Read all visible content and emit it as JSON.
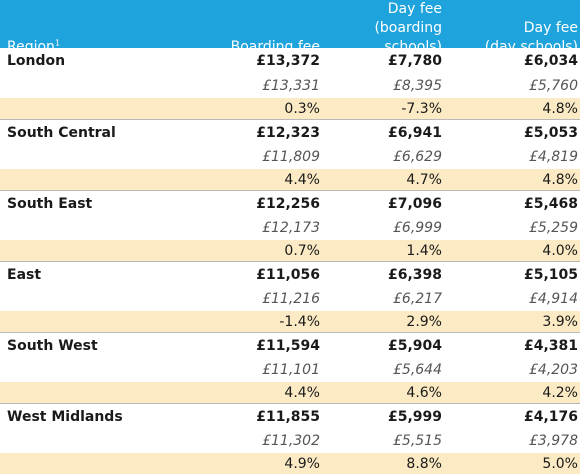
{
  "header": {
    "region_label": "Region",
    "region_footnote": "1",
    "boarding_label": "Boarding fee",
    "day_boarding_label_1": "Day fee",
    "day_boarding_label_2": "(boarding schools)",
    "day_day_label_1": "Day fee",
    "day_day_label_2": "(day schools)"
  },
  "rows": [
    {
      "region": "London",
      "boarding": "£13,372",
      "day_boarding": "£7,780",
      "day_day": "£6,034",
      "prev_boarding": "£13,331",
      "prev_day_boarding": "£8,395",
      "prev_day_day": "£5,760",
      "pct_boarding": "0.3%",
      "pct_day_boarding": "-7.3%",
      "pct_day_day": "4.8%"
    },
    {
      "region": "South Central",
      "boarding": "£12,323",
      "day_boarding": "£6,941",
      "day_day": "£5,053",
      "prev_boarding": "£11,809",
      "prev_day_boarding": "£6,629",
      "prev_day_day": "£4,819",
      "pct_boarding": "4.4%",
      "pct_day_boarding": "4.7%",
      "pct_day_day": "4.8%"
    },
    {
      "region": "South East",
      "boarding": "£12,256",
      "day_boarding": "£7,096",
      "day_day": "£5,468",
      "prev_boarding": "£12,173",
      "prev_day_boarding": "£6,999",
      "prev_day_day": "£5,259",
      "pct_boarding": "0.7%",
      "pct_day_boarding": "1.4%",
      "pct_day_day": "4.0%"
    },
    {
      "region": "East",
      "boarding": "£11,056",
      "day_boarding": "£6,398",
      "day_day": "£5,105",
      "prev_boarding": "£11,216",
      "prev_day_boarding": "£6,217",
      "prev_day_day": "£4,914",
      "pct_boarding": "-1.4%",
      "pct_day_boarding": "2.9%",
      "pct_day_day": "3.9%"
    },
    {
      "region": "South West",
      "boarding": "£11,594",
      "day_boarding": "£5,904",
      "day_day": "£4,381",
      "prev_boarding": "£11,101",
      "prev_day_boarding": "£5,644",
      "prev_day_day": "£4,203",
      "pct_boarding": "4.4%",
      "pct_day_boarding": "4.6%",
      "pct_day_day": "4.2%"
    },
    {
      "region": "West Midlands",
      "boarding": "£11,855",
      "day_boarding": "£5,999",
      "day_day": "£4,176",
      "prev_boarding": "£11,302",
      "prev_day_boarding": "£5,515",
      "prev_day_day": "£3,978",
      "pct_boarding": "4.9%",
      "pct_day_boarding": "8.8%",
      "pct_day_day": "5.0%"
    }
  ]
}
